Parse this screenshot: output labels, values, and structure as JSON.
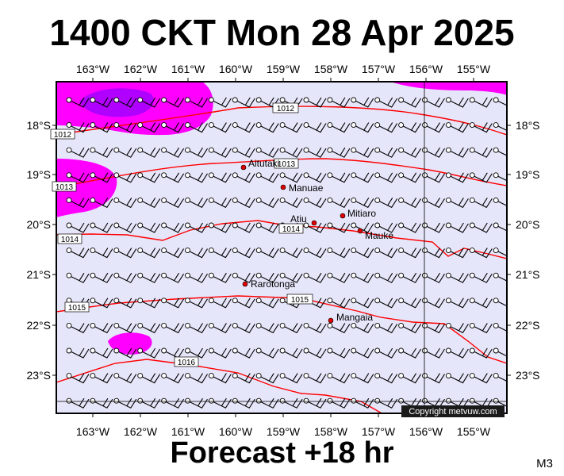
{
  "title": "1400 CKT Mon 28 Apr 2025",
  "footer": "Forecast +18 hr",
  "model_code": "M3",
  "copyright": "Copyright metvuw.com",
  "colors": {
    "ocean": "#e6e6fa",
    "magenta": "#ff00ff",
    "purple": "#b000ff",
    "isobar": "#ff0000",
    "frame": "#000000"
  },
  "axes": {
    "lon_labels": [
      "163°W",
      "162°W",
      "161°W",
      "160°W",
      "159°W",
      "158°W",
      "157°W",
      "156°W",
      "155°W"
    ],
    "lat_labels": [
      "18°S",
      "19°S",
      "20°S",
      "21°S",
      "22°S",
      "23°S"
    ]
  },
  "isobars": [
    {
      "label": "1012"
    },
    {
      "label": "1013"
    },
    {
      "label": "1014"
    },
    {
      "label": "1015"
    },
    {
      "label": "1016"
    }
  ],
  "places": [
    {
      "name": "Aitutaki"
    },
    {
      "name": "Manuae"
    },
    {
      "name": "Mitiaro"
    },
    {
      "name": "Atiu"
    },
    {
      "name": "Mauke"
    },
    {
      "name": "Rarotonga"
    },
    {
      "name": "Mangaia"
    }
  ]
}
